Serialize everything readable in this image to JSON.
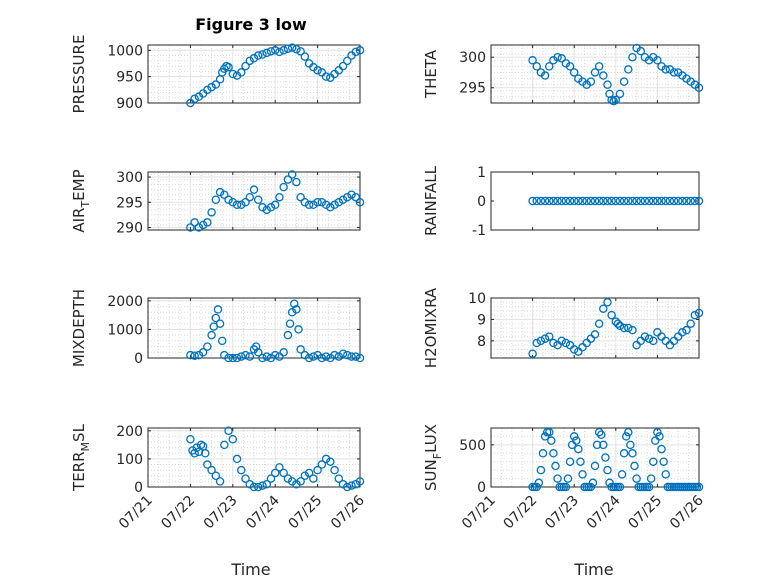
{
  "chart_data": [
    {
      "type": "scatter",
      "title": "Figure 3 low",
      "ylabel": "PRESSURE",
      "xlabel": "",
      "xlim": [
        20.0,
        25.0
      ],
      "ylim": [
        900,
        1010
      ],
      "xticks": [
        20,
        21,
        22,
        23,
        24,
        25
      ],
      "xticklabels": [
        "07/21",
        "07/22",
        "07/23",
        "07/24",
        "07/25",
        "07/26"
      ],
      "yticks": [
        900,
        950,
        1000
      ],
      "yticklabels": [
        "900",
        "950",
        "1000"
      ],
      "grid": true,
      "series": [
        {
          "x": [
            21.0,
            21.1,
            21.2,
            21.3,
            21.4,
            21.5,
            21.6,
            21.7,
            21.75,
            21.8,
            21.85,
            21.9,
            22.0,
            22.1,
            22.2,
            22.3,
            22.4,
            22.5,
            22.6,
            22.7,
            22.8,
            22.9,
            23.0,
            23.1,
            23.2,
            23.3,
            23.4,
            23.5,
            23.6,
            23.7,
            23.8,
            23.9,
            24.0,
            24.1,
            24.2,
            24.3,
            24.4,
            24.5,
            24.6,
            24.7,
            24.8,
            24.9,
            25.0
          ],
          "y": [
            900,
            908,
            912,
            918,
            925,
            930,
            935,
            945,
            958,
            965,
            970,
            968,
            955,
            952,
            958,
            970,
            980,
            985,
            990,
            992,
            995,
            998,
            1000,
            997,
            1000,
            1003,
            1005,
            1002,
            998,
            988,
            975,
            968,
            962,
            958,
            950,
            948,
            955,
            962,
            970,
            980,
            990,
            997,
            1000
          ]
        }
      ]
    },
    {
      "type": "scatter",
      "title": "",
      "ylabel": "THETA",
      "xlabel": "",
      "xlim": [
        20.0,
        25.0
      ],
      "ylim": [
        292.5,
        302
      ],
      "xticks": [
        20,
        21,
        22,
        23,
        24,
        25
      ],
      "xticklabels": [
        "07/21",
        "07/22",
        "07/23",
        "07/24",
        "07/25",
        "07/26"
      ],
      "yticks": [
        295,
        300
      ],
      "yticklabels": [
        "295",
        "300"
      ],
      "grid": true,
      "series": [
        {
          "x": [
            21.0,
            21.1,
            21.2,
            21.3,
            21.4,
            21.5,
            21.6,
            21.7,
            21.8,
            21.9,
            22.0,
            22.1,
            22.2,
            22.3,
            22.4,
            22.5,
            22.6,
            22.7,
            22.8,
            22.85,
            22.9,
            22.95,
            23.0,
            23.1,
            23.2,
            23.3,
            23.4,
            23.5,
            23.6,
            23.7,
            23.8,
            23.9,
            24.0,
            24.1,
            24.2,
            24.3,
            24.4,
            24.5,
            24.6,
            24.7,
            24.8,
            24.9,
            25.0
          ],
          "y": [
            299.5,
            298.5,
            297.5,
            297,
            298.5,
            299.5,
            300,
            299.8,
            299,
            298.5,
            297.5,
            296.5,
            296,
            295.5,
            296,
            297.5,
            298.5,
            297,
            295.5,
            294,
            293,
            292.8,
            293,
            294,
            296,
            298,
            300,
            301.5,
            301,
            300,
            299.5,
            300,
            299.5,
            298.5,
            298,
            298,
            297.5,
            297.5,
            297,
            296.5,
            296,
            295.5,
            295
          ]
        }
      ]
    },
    {
      "type": "scatter",
      "title": "",
      "ylabel": "AIR_TEMP",
      "xlabel": "",
      "xlim": [
        20.0,
        25.0
      ],
      "ylim": [
        289.5,
        301
      ],
      "xticks": [
        20,
        21,
        22,
        23,
        24,
        25
      ],
      "xticklabels": [
        "07/21",
        "07/22",
        "07/23",
        "07/24",
        "07/25",
        "07/26"
      ],
      "yticks": [
        290,
        295,
        300
      ],
      "yticklabels": [
        "290",
        "295",
        "300"
      ],
      "grid": true,
      "series": [
        {
          "x": [
            21.0,
            21.1,
            21.2,
            21.3,
            21.4,
            21.5,
            21.6,
            21.7,
            21.8,
            21.9,
            22.0,
            22.1,
            22.2,
            22.3,
            22.4,
            22.5,
            22.6,
            22.7,
            22.8,
            22.9,
            23.0,
            23.1,
            23.2,
            23.3,
            23.4,
            23.5,
            23.6,
            23.7,
            23.8,
            23.9,
            24.0,
            24.1,
            24.2,
            24.3,
            24.4,
            24.5,
            24.6,
            24.7,
            24.8,
            24.9,
            25.0
          ],
          "y": [
            290,
            291,
            290,
            290.5,
            291,
            293,
            295.5,
            297,
            296.5,
            295.5,
            295,
            294.5,
            294.5,
            295,
            296,
            297.5,
            295.5,
            294,
            293.5,
            294,
            294.5,
            296,
            298,
            299.5,
            300.5,
            299,
            296,
            295,
            294.5,
            294.5,
            295,
            295,
            294.5,
            294,
            294.5,
            295,
            295.5,
            296,
            296.5,
            296,
            295
          ]
        }
      ]
    },
    {
      "type": "scatter",
      "title": "",
      "ylabel": "RAINFALL",
      "xlabel": "",
      "xlim": [
        20.0,
        25.0
      ],
      "ylim": [
        -1,
        1
      ],
      "xticks": [
        20,
        21,
        22,
        23,
        24,
        25
      ],
      "xticklabels": [
        "07/21",
        "07/22",
        "07/23",
        "07/24",
        "07/25",
        "07/26"
      ],
      "yticks": [
        -1,
        0,
        1
      ],
      "yticklabels": [
        "-1",
        "0",
        "1"
      ],
      "grid": false,
      "series": [
        {
          "x": [
            21.0,
            21.1,
            21.2,
            21.3,
            21.4,
            21.5,
            21.6,
            21.7,
            21.8,
            21.9,
            22.0,
            22.1,
            22.2,
            22.3,
            22.4,
            22.5,
            22.6,
            22.7,
            22.8,
            22.9,
            23.0,
            23.1,
            23.2,
            23.3,
            23.4,
            23.5,
            23.6,
            23.7,
            23.8,
            23.9,
            24.0,
            24.1,
            24.2,
            24.3,
            24.4,
            24.5,
            24.6,
            24.7,
            24.8,
            24.9,
            25.0
          ],
          "y": [
            0,
            0,
            0,
            0,
            0,
            0,
            0,
            0,
            0,
            0,
            0,
            0,
            0,
            0,
            0,
            0,
            0,
            0,
            0,
            0,
            0,
            0,
            0,
            0,
            0,
            0,
            0,
            0,
            0,
            0,
            0,
            0,
            0,
            0,
            0,
            0,
            0,
            0,
            0,
            0,
            0
          ]
        }
      ]
    },
    {
      "type": "scatter",
      "title": "",
      "ylabel": "MIXDEPTH",
      "xlabel": "",
      "xlim": [
        20.0,
        25.0
      ],
      "ylim": [
        0,
        2100
      ],
      "xticks": [
        20,
        21,
        22,
        23,
        24,
        25
      ],
      "xticklabels": [
        "07/21",
        "07/22",
        "07/23",
        "07/24",
        "07/25",
        "07/26"
      ],
      "yticks": [
        0,
        1000,
        2000
      ],
      "yticklabels": [
        "0",
        "1000",
        "2000"
      ],
      "grid": true,
      "series": [
        {
          "x": [
            21.0,
            21.1,
            21.2,
            21.3,
            21.4,
            21.5,
            21.55,
            21.6,
            21.65,
            21.7,
            21.75,
            21.8,
            21.9,
            22.0,
            22.1,
            22.2,
            22.3,
            22.4,
            22.5,
            22.55,
            22.6,
            22.7,
            22.8,
            22.9,
            23.0,
            23.1,
            23.2,
            23.3,
            23.35,
            23.4,
            23.45,
            23.5,
            23.55,
            23.6,
            23.7,
            23.8,
            23.9,
            24.0,
            24.1,
            24.2,
            24.3,
            24.4,
            24.5,
            24.6,
            24.7,
            24.8,
            24.9,
            25.0
          ],
          "y": [
            100,
            80,
            100,
            200,
            400,
            800,
            1100,
            1400,
            1700,
            1200,
            600,
            100,
            0,
            0,
            0,
            50,
            100,
            50,
            300,
            400,
            200,
            0,
            50,
            0,
            100,
            50,
            200,
            800,
            1200,
            1600,
            1900,
            1700,
            1000,
            300,
            100,
            0,
            50,
            100,
            0,
            50,
            0,
            100,
            50,
            150,
            100,
            50,
            50,
            0
          ]
        }
      ]
    },
    {
      "type": "scatter",
      "title": "",
      "ylabel": "H2OMIXRA",
      "xlabel": "",
      "xlim": [
        20.0,
        25.0
      ],
      "ylim": [
        7.2,
        10
      ],
      "xticks": [
        20,
        21,
        22,
        23,
        24,
        25
      ],
      "xticklabels": [
        "07/21",
        "07/22",
        "07/23",
        "07/24",
        "07/25",
        "07/26"
      ],
      "yticks": [
        8,
        9,
        10
      ],
      "yticklabels": [
        "8",
        "9",
        "10"
      ],
      "grid": true,
      "series": [
        {
          "x": [
            21.0,
            21.1,
            21.2,
            21.3,
            21.4,
            21.5,
            21.6,
            21.7,
            21.8,
            21.9,
            22.0,
            22.1,
            22.2,
            22.3,
            22.4,
            22.5,
            22.6,
            22.7,
            22.8,
            22.9,
            23.0,
            23.05,
            23.1,
            23.2,
            23.3,
            23.4,
            23.5,
            23.6,
            23.7,
            23.8,
            23.9,
            24.0,
            24.1,
            24.2,
            24.3,
            24.4,
            24.5,
            24.6,
            24.7,
            24.8,
            24.9,
            25.0
          ],
          "y": [
            7.4,
            7.9,
            8.0,
            8.1,
            8.2,
            7.9,
            7.8,
            8.0,
            7.9,
            7.8,
            7.6,
            7.5,
            7.7,
            7.9,
            8.1,
            8.3,
            8.8,
            9.5,
            9.8,
            9.2,
            8.9,
            8.8,
            8.7,
            8.6,
            8.6,
            8.5,
            7.8,
            8.0,
            8.2,
            8.1,
            8.0,
            8.4,
            8.2,
            8.0,
            7.8,
            8.0,
            8.2,
            8.4,
            8.5,
            8.8,
            9.2,
            9.3
          ]
        }
      ]
    },
    {
      "type": "scatter",
      "title": "",
      "ylabel": "TERR_MSL",
      "xlabel": "Time",
      "xlim": [
        20.0,
        25.0
      ],
      "ylim": [
        0,
        210
      ],
      "xticks": [
        20,
        21,
        22,
        23,
        24,
        25
      ],
      "xticklabels": [
        "07/21",
        "07/22",
        "07/23",
        "07/24",
        "07/25",
        "07/26"
      ],
      "yticks": [
        0,
        100,
        200
      ],
      "yticklabels": [
        "0",
        "100",
        "200"
      ],
      "grid": true,
      "series": [
        {
          "x": [
            21.0,
            21.05,
            21.1,
            21.15,
            21.2,
            21.25,
            21.3,
            21.35,
            21.4,
            21.5,
            21.6,
            21.7,
            21.8,
            21.9,
            22.0,
            22.1,
            22.2,
            22.3,
            22.4,
            22.5,
            22.6,
            22.7,
            22.8,
            22.9,
            23.0,
            23.1,
            23.2,
            23.3,
            23.4,
            23.5,
            23.6,
            23.7,
            23.8,
            23.9,
            24.0,
            24.1,
            24.2,
            24.3,
            24.4,
            24.5,
            24.6,
            24.7,
            24.8,
            24.9,
            25.0
          ],
          "y": [
            170,
            130,
            120,
            140,
            125,
            150,
            145,
            120,
            80,
            60,
            40,
            20,
            150,
            200,
            170,
            100,
            60,
            30,
            10,
            0,
            0,
            5,
            10,
            30,
            50,
            70,
            50,
            30,
            20,
            10,
            20,
            40,
            50,
            30,
            60,
            80,
            100,
            90,
            60,
            30,
            10,
            0,
            5,
            10,
            20
          ]
        }
      ]
    },
    {
      "type": "scatter",
      "title": "",
      "ylabel": "SUN_FLUX",
      "xlabel": "Time",
      "xlim": [
        20.0,
        25.0
      ],
      "ylim": [
        0,
        700
      ],
      "xticks": [
        20,
        21,
        22,
        23,
        24,
        25
      ],
      "xticklabels": [
        "07/21",
        "07/22",
        "07/23",
        "07/24",
        "07/25",
        "07/26"
      ],
      "yticks": [
        0,
        500
      ],
      "yticklabels": [
        "0",
        "500"
      ],
      "grid": true,
      "series": [
        {
          "x": [
            21.0,
            21.05,
            21.1,
            21.15,
            21.2,
            21.25,
            21.3,
            21.35,
            21.4,
            21.45,
            21.5,
            21.55,
            21.6,
            21.65,
            21.7,
            21.75,
            21.8,
            21.85,
            21.9,
            21.95,
            22.0,
            22.05,
            22.1,
            22.15,
            22.2,
            22.25,
            22.3,
            22.35,
            22.4,
            22.45,
            22.5,
            22.55,
            22.6,
            22.65,
            22.7,
            22.75,
            22.8,
            22.85,
            22.9,
            22.95,
            23.0,
            23.05,
            23.1,
            23.15,
            23.2,
            23.25,
            23.3,
            23.35,
            23.4,
            23.45,
            23.5,
            23.55,
            23.6,
            23.65,
            23.7,
            23.75,
            23.8,
            23.85,
            23.9,
            23.95,
            24.0,
            24.05,
            24.1,
            24.15,
            24.2,
            24.25,
            24.3,
            24.35,
            24.4,
            24.45,
            24.5,
            24.55,
            24.6,
            24.65,
            24.7,
            24.75,
            24.8,
            24.85,
            24.9,
            24.95,
            25.0
          ],
          "y": [
            0,
            0,
            0,
            50,
            200,
            400,
            600,
            650,
            650,
            550,
            400,
            250,
            100,
            0,
            0,
            0,
            0,
            100,
            300,
            500,
            600,
            550,
            450,
            300,
            150,
            0,
            0,
            0,
            0,
            50,
            250,
            500,
            650,
            620,
            500,
            350,
            200,
            50,
            0,
            0,
            0,
            0,
            0,
            150,
            400,
            600,
            650,
            500,
            400,
            250,
            100,
            0,
            0,
            0,
            0,
            0,
            0,
            100,
            300,
            550,
            650,
            600,
            450,
            300,
            150,
            0,
            0,
            0,
            0,
            0,
            0,
            0,
            0,
            0,
            0,
            0,
            0,
            0,
            0,
            0,
            0
          ]
        }
      ]
    }
  ]
}
